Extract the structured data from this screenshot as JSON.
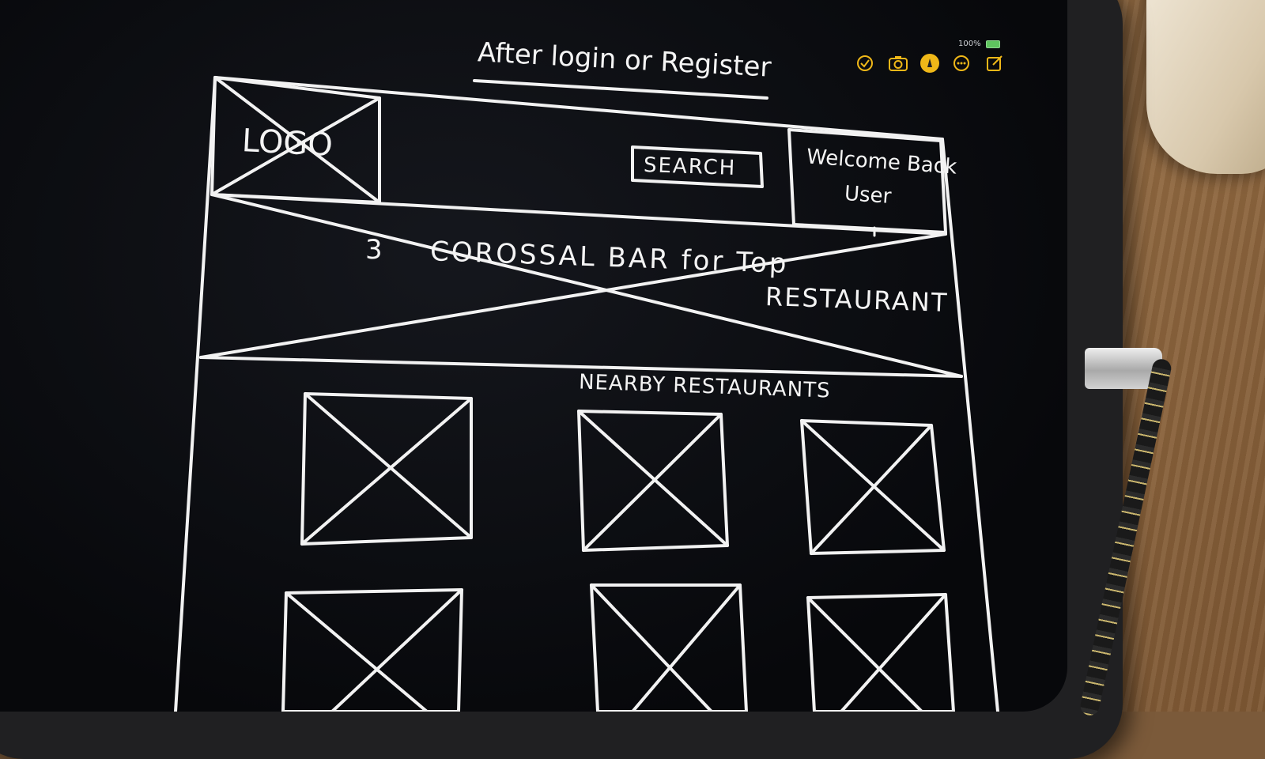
{
  "title": "After login or Register",
  "header": {
    "logo_label": "LOGO",
    "search_label": "SEARCH",
    "welcome_line1": "Welcome Back",
    "welcome_line2": "User"
  },
  "carousel": {
    "count": "3",
    "label_line1": "COROSSAL BAR for Top",
    "label_line2": "RESTAURANT"
  },
  "nearby": {
    "heading": "NEARBY RESTAURANTS",
    "tiles": [
      "tile-1",
      "tile-2",
      "tile-3",
      "tile-4",
      "tile-5",
      "tile-6"
    ]
  },
  "toolbar": {
    "icons": [
      "checklist-icon",
      "camera-icon",
      "markup-icon",
      "more-icon",
      "compose-icon"
    ],
    "battery_text": "100%"
  },
  "colors": {
    "ink": "#f2f2f2",
    "tool_accent": "#f0b818",
    "screen_bg": "#0b0c10"
  }
}
